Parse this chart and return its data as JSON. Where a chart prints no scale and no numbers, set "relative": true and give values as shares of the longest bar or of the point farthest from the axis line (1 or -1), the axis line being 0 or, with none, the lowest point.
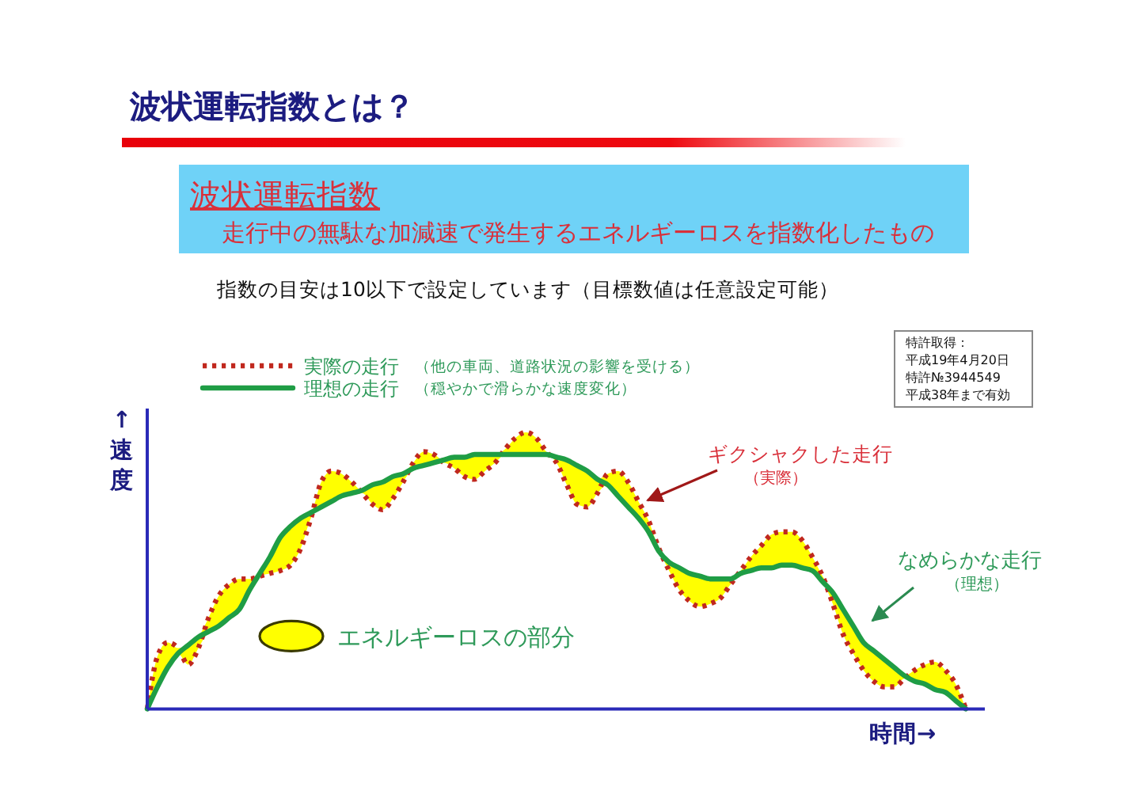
{
  "chart_data": {
    "type": "line",
    "title": "波状運転指数とは？",
    "subtitle": "波状運転指数",
    "xlabel": "時間→",
    "ylabel": "↑速度",
    "relative": true,
    "legend": "top left",
    "categories": [
      null,
      null,
      null,
      null,
      null,
      null,
      null,
      null,
      null,
      null,
      null,
      null,
      null,
      null,
      null,
      null,
      null,
      null,
      null,
      null,
      null,
      null,
      null,
      null,
      null,
      null,
      null,
      null,
      null,
      null,
      null,
      null,
      null,
      null,
      null,
      null,
      null,
      null,
      null,
      null,
      null,
      null,
      null,
      null,
      null,
      null,
      null,
      null,
      null,
      null,
      null,
      null,
      null,
      null,
      null,
      null,
      null,
      null,
      null,
      null,
      null,
      null,
      null,
      null,
      null,
      null,
      null,
      null,
      null,
      null,
      null,
      null,
      null,
      null,
      null,
      null,
      null,
      null,
      null,
      null,
      null
    ],
    "series": [
      {
        "name": "実際の走行",
        "color": "#c0281e",
        "line_style": "dotted",
        "values": [
          0,
          0.19,
          0.24,
          0.22,
          0.16,
          0.22,
          0.33,
          0.41,
          0.45,
          0.47,
          0.47,
          0.48,
          0.49,
          0.5,
          0.52,
          0.58,
          0.69,
          0.82,
          0.86,
          0.85,
          0.82,
          0.78,
          0.74,
          0.72,
          0.76,
          0.82,
          0.89,
          0.93,
          0.92,
          0.89,
          0.87,
          0.84,
          0.83,
          0.86,
          0.89,
          0.94,
          0.98,
          1,
          0.98,
          0.93,
          0.89,
          0.81,
          0.74,
          0.73,
          0.78,
          0.85,
          0.86,
          0.82,
          0.75,
          0.68,
          0.58,
          0.5,
          0.43,
          0.39,
          0.37,
          0.38,
          0.4,
          0.45,
          0.5,
          0.55,
          0.59,
          0.63,
          0.64,
          0.64,
          0.61,
          0.55,
          0.48,
          0.38,
          0.27,
          0.2,
          0.14,
          0.1,
          0.08,
          0.08,
          0.11,
          0.14,
          0.16,
          0.17,
          0.14,
          0.09,
          0
        ]
      },
      {
        "name": "理想の走行",
        "color": "#1f9d45",
        "line_style": "solid",
        "values": [
          0,
          0.08,
          0.15,
          0.2,
          0.23,
          0.26,
          0.28,
          0.3,
          0.33,
          0.36,
          0.43,
          0.49,
          0.55,
          0.62,
          0.66,
          0.69,
          0.71,
          0.73,
          0.75,
          0.77,
          0.78,
          0.79,
          0.81,
          0.82,
          0.84,
          0.85,
          0.87,
          0.88,
          0.89,
          0.9,
          0.91,
          0.91,
          0.92,
          0.92,
          0.92,
          0.92,
          0.92,
          0.92,
          0.92,
          0.92,
          0.91,
          0.9,
          0.88,
          0.86,
          0.83,
          0.81,
          0.77,
          0.73,
          0.69,
          0.64,
          0.57,
          0.53,
          0.51,
          0.49,
          0.48,
          0.47,
          0.47,
          0.47,
          0.49,
          0.5,
          0.51,
          0.51,
          0.52,
          0.52,
          0.51,
          0.5,
          0.46,
          0.42,
          0.36,
          0.3,
          0.24,
          0.21,
          0.18,
          0.15,
          0.12,
          0.1,
          0.09,
          0.07,
          0.06,
          0.03,
          0
        ],
        "upper": [
          0,
          0.19,
          0.24,
          0.22,
          0.23,
          0.26,
          0.33,
          0.41,
          0.45,
          0.47,
          0.47,
          0.49,
          0.55,
          0.62,
          0.66,
          0.69,
          0.71,
          0.82,
          0.86,
          0.85,
          0.82,
          0.79,
          0.81,
          0.82,
          0.84,
          0.85,
          0.89,
          0.93,
          0.92,
          0.9,
          0.91,
          0.91,
          0.92,
          0.92,
          0.92,
          0.94,
          0.98,
          1,
          0.98,
          0.93,
          0.91,
          0.9,
          0.88,
          0.86,
          0.83,
          0.85,
          0.86,
          0.82,
          0.75,
          0.68,
          0.58,
          0.53,
          0.51,
          0.49,
          0.48,
          0.47,
          0.47,
          0.47,
          0.5,
          0.55,
          0.59,
          0.63,
          0.64,
          0.64,
          0.61,
          0.55,
          0.48,
          0.42,
          0.36,
          0.3,
          0.24,
          0.21,
          0.18,
          0.15,
          0.12,
          0.14,
          0.16,
          0.17,
          0.14,
          0.09,
          0
        ],
        "lower": [
          0,
          0.08,
          0.15,
          0.2,
          0.16,
          0.22,
          0.28,
          0.3,
          0.33,
          0.36,
          0.43,
          0.48,
          0.49,
          0.5,
          0.52,
          0.58,
          0.69,
          0.73,
          0.75,
          0.77,
          0.78,
          0.78,
          0.74,
          0.72,
          0.76,
          0.82,
          0.87,
          0.88,
          0.89,
          0.89,
          0.87,
          0.84,
          0.83,
          0.86,
          0.89,
          0.92,
          0.92,
          0.92,
          0.92,
          0.92,
          0.89,
          0.81,
          0.74,
          0.73,
          0.78,
          0.81,
          0.77,
          0.73,
          0.69,
          0.64,
          0.57,
          0.5,
          0.43,
          0.39,
          0.37,
          0.38,
          0.4,
          0.45,
          0.49,
          0.5,
          0.51,
          0.51,
          0.52,
          0.52,
          0.51,
          0.5,
          0.46,
          0.38,
          0.27,
          0.2,
          0.14,
          0.1,
          0.08,
          0.08,
          0.11,
          0.1,
          0.09,
          0.07,
          0.06,
          0.03,
          0
        ]
      }
    ],
    "annotations": [
      "走行中の無駄な加減速で発生するエネルギーロスを指数化したもの",
      "指数の目安は10以下で設定しています（目標数値は任意設定可能）",
      "（他の車両、道路状況の影響を受ける）",
      "（穏やかで滑らかな速度変化）",
      "特許取得：",
      "平成19年4月20日",
      "特許№3944549",
      "平成38年まで有効",
      "ギクシャクした走行",
      "（実際）",
      "なめらかな走行",
      "（理想）",
      "エネルギーロスの部分"
    ]
  }
}
